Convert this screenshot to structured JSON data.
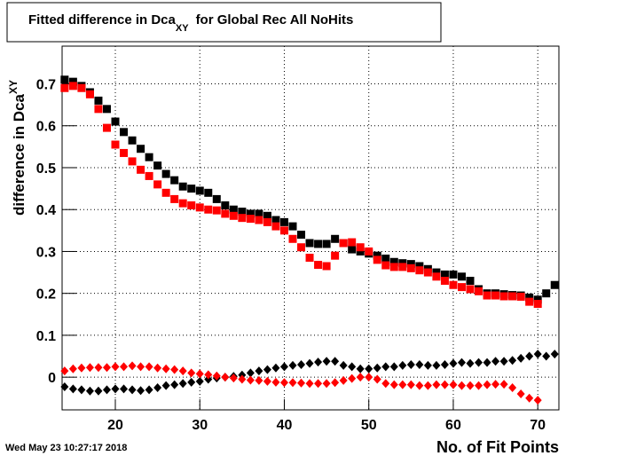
{
  "chart_data": {
    "type": "scatter",
    "title": [
      "Fitted difference in Dca",
      "XY",
      "for Global Rec All NoHits"
    ],
    "ylabel": [
      "difference in Dca",
      "XY"
    ],
    "xlabel": "No. of Fit Points",
    "timestamp": "Wed May 23 10:27:17 2018",
    "xlim": [
      13.7,
      72.5
    ],
    "ylim": [
      -0.078,
      0.79
    ],
    "xticks": [
      20,
      30,
      40,
      50,
      60,
      70
    ],
    "yticks": [
      0,
      0.1,
      0.2,
      0.3,
      0.4,
      0.5,
      0.6,
      0.7
    ],
    "grid": true,
    "series": [
      {
        "color": "#000000",
        "marker": "square",
        "x": [
          14,
          15,
          16,
          17,
          18,
          19,
          20,
          21,
          22,
          23,
          24,
          25,
          26,
          27,
          28,
          29,
          30,
          31,
          32,
          33,
          34,
          35,
          36,
          37,
          38,
          39,
          40,
          41,
          42,
          43,
          44,
          45,
          46,
          47,
          48,
          49,
          50,
          51,
          52,
          53,
          54,
          55,
          56,
          57,
          58,
          59,
          60,
          61,
          62,
          63,
          64,
          65,
          66,
          67,
          68,
          69,
          70,
          71,
          72
        ],
        "values": [
          0.71,
          0.705,
          0.695,
          0.68,
          0.66,
          0.64,
          0.61,
          0.585,
          0.565,
          0.545,
          0.525,
          0.505,
          0.485,
          0.47,
          0.455,
          0.45,
          0.445,
          0.44,
          0.425,
          0.41,
          0.4,
          0.395,
          0.39,
          0.39,
          0.385,
          0.375,
          0.37,
          0.36,
          0.34,
          0.32,
          0.318,
          0.318,
          0.33,
          0.32,
          0.305,
          0.3,
          0.295,
          0.29,
          0.283,
          0.275,
          0.272,
          0.27,
          0.265,
          0.258,
          0.25,
          0.245,
          0.245,
          0.24,
          0.23,
          0.21,
          0.2,
          0.2,
          0.198,
          0.196,
          0.195,
          0.19,
          0.185,
          0.2,
          0.22
        ]
      },
      {
        "color": "#ff0000",
        "marker": "square",
        "x": [
          14,
          15,
          16,
          17,
          18,
          19,
          20,
          21,
          22,
          23,
          24,
          25,
          26,
          27,
          28,
          29,
          30,
          31,
          32,
          33,
          34,
          35,
          36,
          37,
          38,
          39,
          40,
          41,
          42,
          43,
          44,
          45,
          46,
          47,
          48,
          49,
          50,
          51,
          52,
          53,
          54,
          55,
          56,
          57,
          58,
          59,
          60,
          61,
          62,
          63,
          64,
          65,
          66,
          67,
          68,
          69,
          70
        ],
        "values": [
          0.69,
          0.695,
          0.69,
          0.675,
          0.64,
          0.595,
          0.555,
          0.535,
          0.515,
          0.495,
          0.48,
          0.46,
          0.44,
          0.425,
          0.415,
          0.41,
          0.405,
          0.4,
          0.398,
          0.39,
          0.385,
          0.38,
          0.378,
          0.375,
          0.37,
          0.36,
          0.35,
          0.33,
          0.31,
          0.285,
          0.268,
          0.265,
          0.29,
          0.32,
          0.322,
          0.31,
          0.3,
          0.28,
          0.267,
          0.263,
          0.263,
          0.26,
          0.255,
          0.25,
          0.24,
          0.23,
          0.22,
          0.215,
          0.21,
          0.205,
          0.195,
          0.195,
          0.193,
          0.193,
          0.192,
          0.18,
          0.175
        ]
      },
      {
        "color": "#000000",
        "marker": "diamond",
        "x": [
          14,
          15,
          16,
          17,
          18,
          19,
          20,
          21,
          22,
          23,
          24,
          25,
          26,
          27,
          28,
          29,
          30,
          31,
          32,
          33,
          34,
          35,
          36,
          37,
          38,
          39,
          40,
          41,
          42,
          43,
          44,
          45,
          46,
          47,
          48,
          49,
          50,
          51,
          52,
          53,
          54,
          55,
          56,
          57,
          58,
          59,
          60,
          61,
          62,
          63,
          64,
          65,
          66,
          67,
          68,
          69,
          70,
          71,
          72
        ],
        "values": [
          -0.023,
          -0.028,
          -0.03,
          -0.033,
          -0.033,
          -0.03,
          -0.028,
          -0.028,
          -0.03,
          -0.032,
          -0.03,
          -0.025,
          -0.02,
          -0.018,
          -0.015,
          -0.012,
          -0.01,
          -0.005,
          -0.002,
          0.0,
          0.002,
          0.005,
          0.01,
          0.015,
          0.018,
          0.022,
          0.025,
          0.028,
          0.03,
          0.033,
          0.036,
          0.038,
          0.038,
          0.028,
          0.025,
          0.02,
          0.02,
          0.022,
          0.025,
          0.025,
          0.028,
          0.03,
          0.03,
          0.028,
          0.028,
          0.03,
          0.033,
          0.035,
          0.033,
          0.035,
          0.035,
          0.038,
          0.038,
          0.04,
          0.045,
          0.05,
          0.055,
          0.05,
          0.055
        ]
      },
      {
        "color": "#ff0000",
        "marker": "diamond",
        "x": [
          14,
          15,
          16,
          17,
          18,
          19,
          20,
          21,
          22,
          23,
          24,
          25,
          26,
          27,
          28,
          29,
          30,
          31,
          32,
          33,
          34,
          35,
          36,
          37,
          38,
          39,
          40,
          41,
          42,
          43,
          44,
          45,
          46,
          47,
          48,
          49,
          50,
          51,
          52,
          53,
          54,
          55,
          56,
          57,
          58,
          59,
          60,
          61,
          62,
          63,
          64,
          65,
          66,
          67,
          68,
          69,
          70
        ],
        "values": [
          0.015,
          0.02,
          0.022,
          0.023,
          0.023,
          0.023,
          0.025,
          0.025,
          0.027,
          0.025,
          0.025,
          0.022,
          0.02,
          0.018,
          0.015,
          0.01,
          0.008,
          0.006,
          0.003,
          0.0,
          -0.002,
          -0.005,
          -0.007,
          -0.008,
          -0.01,
          -0.012,
          -0.013,
          -0.013,
          -0.014,
          -0.015,
          -0.015,
          -0.015,
          -0.013,
          -0.008,
          -0.003,
          0.0,
          0.0,
          -0.005,
          -0.015,
          -0.018,
          -0.018,
          -0.018,
          -0.02,
          -0.02,
          -0.018,
          -0.018,
          -0.018,
          -0.02,
          -0.02,
          -0.02,
          -0.018,
          -0.017,
          -0.017,
          -0.025,
          -0.04,
          -0.05,
          -0.055
        ]
      }
    ]
  }
}
